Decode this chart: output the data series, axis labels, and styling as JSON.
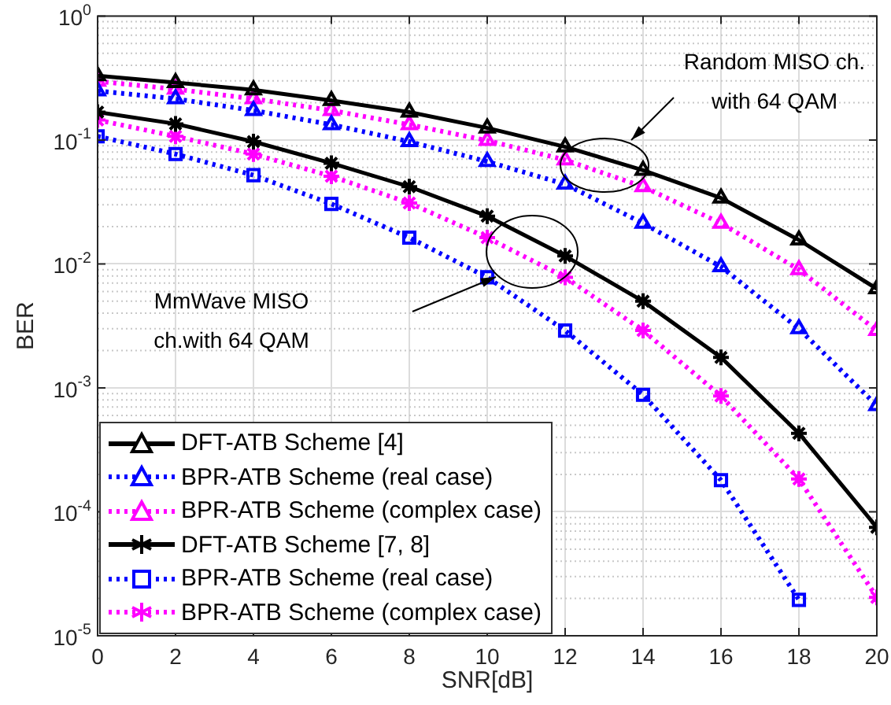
{
  "chart_data": {
    "type": "line",
    "xlabel": "SNR[dB]",
    "ylabel": "BER",
    "x": [
      0,
      2,
      4,
      6,
      8,
      10,
      12,
      14,
      16,
      18,
      20
    ],
    "xlim": [
      0,
      20
    ],
    "xticks": [
      0,
      2,
      4,
      6,
      8,
      10,
      12,
      14,
      16,
      18,
      20
    ],
    "log": "y",
    "ylim": [
      1e-05,
      1
    ],
    "yticks": [
      {
        "value": 1e-05,
        "label": "10$^{-5}$"
      },
      {
        "value": 0.0001,
        "label": "10$^{-4}$"
      },
      {
        "value": 0.001,
        "label": "10$^{-3}$"
      },
      {
        "value": 0.01,
        "label": "10$^{-2}$"
      },
      {
        "value": 0.1,
        "label": "10$^{-1}$"
      },
      {
        "value": 1,
        "label": "10$^{0}$"
      }
    ],
    "grid": true,
    "legend": "bottom left",
    "series": [
      {
        "name": "DFT-ATB Scheme [4]",
        "color": "#000000",
        "marker": "triangle",
        "line_style": "solid",
        "values": [
          0.33,
          0.29,
          0.254,
          0.208,
          0.168,
          0.125,
          0.088,
          0.057,
          0.034,
          0.0156,
          0.0063
        ]
      },
      {
        "name": "BPR-ATB Scheme (real case)",
        "color": "#0000ff",
        "marker": "triangle",
        "line_style": "dotted",
        "values": [
          0.249,
          0.215,
          0.173,
          0.133,
          0.097,
          0.067,
          0.044,
          0.0213,
          0.0095,
          0.003,
          0.00072
        ]
      },
      {
        "name": "BPR-ATB Scheme (complex case)",
        "color": "#ff00ff",
        "marker": "triangle",
        "line_style": "dotted",
        "values": [
          0.298,
          0.257,
          0.215,
          0.173,
          0.133,
          0.099,
          0.069,
          0.042,
          0.0213,
          0.009,
          0.0029
        ]
      },
      {
        "name": "DFT-ATB Scheme [7, 8]",
        "color": "#000000",
        "marker": "cross",
        "line_style": "solid",
        "values": [
          0.168,
          0.135,
          0.097,
          0.065,
          0.042,
          0.0243,
          0.0116,
          0.005,
          0.00176,
          0.00043,
          7.5e-05
        ]
      },
      {
        "name": "BPR-ATB Scheme (real case)",
        "color": "#0000ff",
        "marker": "square",
        "line_style": "dotted",
        "values": [
          0.107,
          0.077,
          0.052,
          0.0305,
          0.0163,
          0.0078,
          0.0029,
          0.00088,
          0.00018,
          1.95e-05,
          null
        ]
      },
      {
        "name": "BPR-ATB Scheme (complex case)",
        "color": "#ff00ff",
        "marker": "cross",
        "line_style": "dotted",
        "values": [
          0.145,
          0.107,
          0.077,
          0.051,
          0.031,
          0.0163,
          0.0078,
          0.0029,
          0.00086,
          0.000184,
          2.04e-05
        ]
      }
    ],
    "annotations": [
      "Random MISO ch.\nwith 64 QAM",
      "MmWave MISO\nch.with 64 QAM"
    ]
  }
}
